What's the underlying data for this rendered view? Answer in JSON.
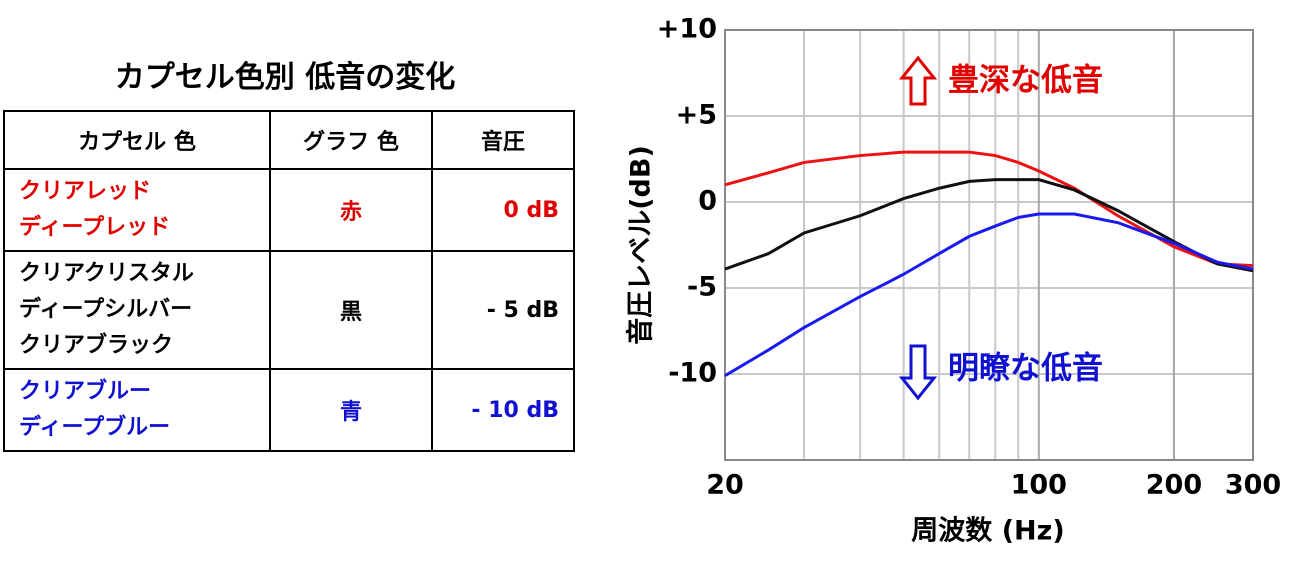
{
  "table": {
    "title": "カプセル色別 低音の変化",
    "headers": [
      "カプセル 色",
      "グラフ 色",
      "音圧"
    ],
    "rows": [
      {
        "color": "#e00000",
        "cells": [
          [
            "クリアレッド",
            "ディープレッド"
          ],
          "赤",
          "0 dB"
        ]
      },
      {
        "color": "#000000",
        "cells": [
          [
            "クリアクリスタル",
            "ディープシルバー",
            "クリアブラック"
          ],
          "黒",
          "- 5 dB"
        ]
      },
      {
        "color": "#1010d0",
        "cells": [
          [
            "クリアブルー",
            "ディープブルー"
          ],
          "青",
          "- 10 dB"
        ]
      }
    ]
  },
  "chart_data": {
    "type": "line",
    "xlabel": "周波数 (Hz)",
    "ylabel": "音圧レベル(dB)",
    "xscale": "log",
    "xlim": [
      20,
      300
    ],
    "xticks": [
      20,
      100,
      200,
      300
    ],
    "x_minor_grid": [
      30,
      40,
      50,
      60,
      70,
      80,
      90,
      200
    ],
    "ylim": [
      -15,
      10
    ],
    "yticks": [
      {
        "value": 10,
        "label": "+10"
      },
      {
        "value": 5,
        "label": "+5"
      },
      0,
      -5,
      -10
    ],
    "grid": true,
    "annotations": [
      {
        "text": "豊深な低音",
        "color": "#e00000"
      },
      {
        "text": "明瞭な低音",
        "color": "#1010d0"
      }
    ],
    "x": [
      20,
      25,
      30,
      40,
      50,
      60,
      70,
      80,
      90,
      100,
      120,
      150,
      200,
      250,
      300
    ],
    "series": [
      {
        "color": "#ee1111",
        "values": [
          1.0,
          1.7,
          2.3,
          2.7,
          2.9,
          2.9,
          2.9,
          2.7,
          2.3,
          1.8,
          0.8,
          -0.8,
          -2.6,
          -3.6,
          -3.7
        ]
      },
      {
        "color": "#111111",
        "values": [
          -3.9,
          -3.0,
          -1.8,
          -0.8,
          0.2,
          0.8,
          1.2,
          1.3,
          1.3,
          1.3,
          0.7,
          -0.5,
          -2.3,
          -3.6,
          -4.0
        ]
      },
      {
        "color": "#1a1aee",
        "values": [
          -10.1,
          -8.6,
          -7.3,
          -5.5,
          -4.2,
          -3.0,
          -2.0,
          -1.4,
          -0.9,
          -0.7,
          -0.7,
          -1.2,
          -2.4,
          -3.5,
          -3.9
        ]
      }
    ]
  }
}
